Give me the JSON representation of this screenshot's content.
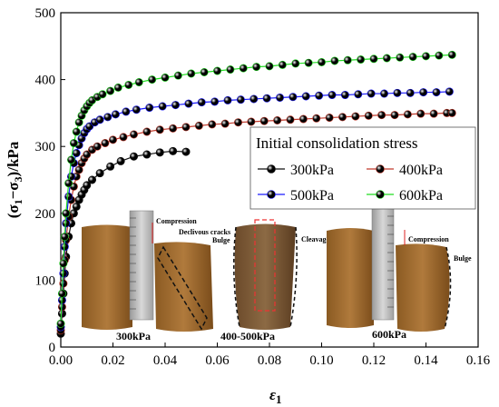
{
  "chart_data": {
    "type": "line",
    "xlabel": "ε",
    "xlabel_sub": "1",
    "ylabel_parts": [
      "(σ",
      "1",
      "−σ",
      "3",
      ")/kPa"
    ],
    "xlim": [
      0,
      0.16
    ],
    "ylim": [
      0,
      500
    ],
    "xticks": [
      0.0,
      0.02,
      0.04,
      0.06,
      0.08,
      0.1,
      0.12,
      0.14,
      0.16
    ],
    "yticks": [
      0,
      100,
      200,
      300,
      400,
      500
    ],
    "legend": {
      "title": "Initial consolidation stress",
      "placement": "center-right"
    },
    "series": [
      {
        "name": "300kPa",
        "color": "#111111",
        "x": [
          0.0,
          0.0005,
          0.001,
          0.0015,
          0.002,
          0.003,
          0.004,
          0.005,
          0.006,
          0.007,
          0.008,
          0.009,
          0.01,
          0.012,
          0.015,
          0.019,
          0.023,
          0.028,
          0.033,
          0.038,
          0.043,
          0.048
        ],
        "y": [
          20,
          50,
          80,
          110,
          135,
          165,
          185,
          200,
          210,
          220,
          228,
          235,
          242,
          250,
          260,
          270,
          278,
          285,
          288,
          291,
          293,
          292
        ]
      },
      {
        "name": "400kPa",
        "color": "#c0392b",
        "x": [
          0.0,
          0.0005,
          0.001,
          0.0015,
          0.002,
          0.003,
          0.004,
          0.005,
          0.006,
          0.007,
          0.008,
          0.009,
          0.01,
          0.012,
          0.014,
          0.017,
          0.02,
          0.024,
          0.028,
          0.033,
          0.038,
          0.043,
          0.048,
          0.053,
          0.058,
          0.063,
          0.068,
          0.073,
          0.078,
          0.083,
          0.088,
          0.093,
          0.098,
          0.103,
          0.108,
          0.113,
          0.118,
          0.123,
          0.128,
          0.133,
          0.138,
          0.143,
          0.148,
          0.15
        ],
        "y": [
          25,
          60,
          95,
          130,
          160,
          195,
          220,
          240,
          255,
          265,
          275,
          282,
          288,
          295,
          300,
          305,
          310,
          314,
          318,
          322,
          325,
          327,
          329,
          331,
          333,
          334,
          336,
          337,
          338,
          339,
          340,
          341,
          342,
          343,
          344,
          345,
          346,
          347,
          347,
          348,
          349,
          349,
          350,
          350
        ]
      },
      {
        "name": "500kPa",
        "color": "#1a1aff",
        "x": [
          0.0,
          0.0005,
          0.001,
          0.0015,
          0.002,
          0.003,
          0.004,
          0.005,
          0.006,
          0.007,
          0.008,
          0.009,
          0.01,
          0.011,
          0.013,
          0.015,
          0.018,
          0.021,
          0.025,
          0.029,
          0.034,
          0.039,
          0.044,
          0.049,
          0.054,
          0.059,
          0.064,
          0.069,
          0.074,
          0.079,
          0.084,
          0.089,
          0.094,
          0.099,
          0.104,
          0.109,
          0.114,
          0.119,
          0.124,
          0.129,
          0.134,
          0.139,
          0.144,
          0.149
        ],
        "y": [
          30,
          70,
          110,
          150,
          185,
          225,
          255,
          275,
          290,
          302,
          312,
          320,
          326,
          330,
          336,
          340,
          344,
          348,
          352,
          355,
          358,
          360,
          362,
          364,
          366,
          367,
          369,
          370,
          371,
          372,
          373,
          374,
          375,
          376,
          377,
          377,
          378,
          379,
          379,
          380,
          380,
          381,
          381,
          382
        ]
      },
      {
        "name": "600kPa",
        "color": "#22dd22",
        "x": [
          0.0,
          0.0005,
          0.001,
          0.0015,
          0.002,
          0.003,
          0.004,
          0.005,
          0.006,
          0.007,
          0.008,
          0.009,
          0.01,
          0.011,
          0.012,
          0.014,
          0.016,
          0.019,
          0.022,
          0.026,
          0.03,
          0.035,
          0.04,
          0.045,
          0.05,
          0.055,
          0.06,
          0.065,
          0.07,
          0.075,
          0.08,
          0.085,
          0.09,
          0.095,
          0.1,
          0.105,
          0.11,
          0.115,
          0.12,
          0.125,
          0.13,
          0.135,
          0.14,
          0.145,
          0.15
        ],
        "y": [
          35,
          80,
          125,
          165,
          200,
          245,
          280,
          305,
          322,
          336,
          346,
          354,
          360,
          365,
          369,
          374,
          378,
          383,
          388,
          392,
          396,
          400,
          403,
          406,
          409,
          411,
          413,
          415,
          417,
          419,
          420,
          422,
          424,
          425,
          426,
          428,
          429,
          430,
          431,
          432,
          433,
          434,
          435,
          436,
          437
        ]
      }
    ]
  },
  "photos": {
    "labels": [
      "300kPa",
      "400-500kPa",
      "600kPa"
    ],
    "annotations": [
      "Compression",
      "Declivous cracks",
      "Bulge",
      "Cleavage cracking",
      "Compression",
      "Bulge"
    ]
  }
}
